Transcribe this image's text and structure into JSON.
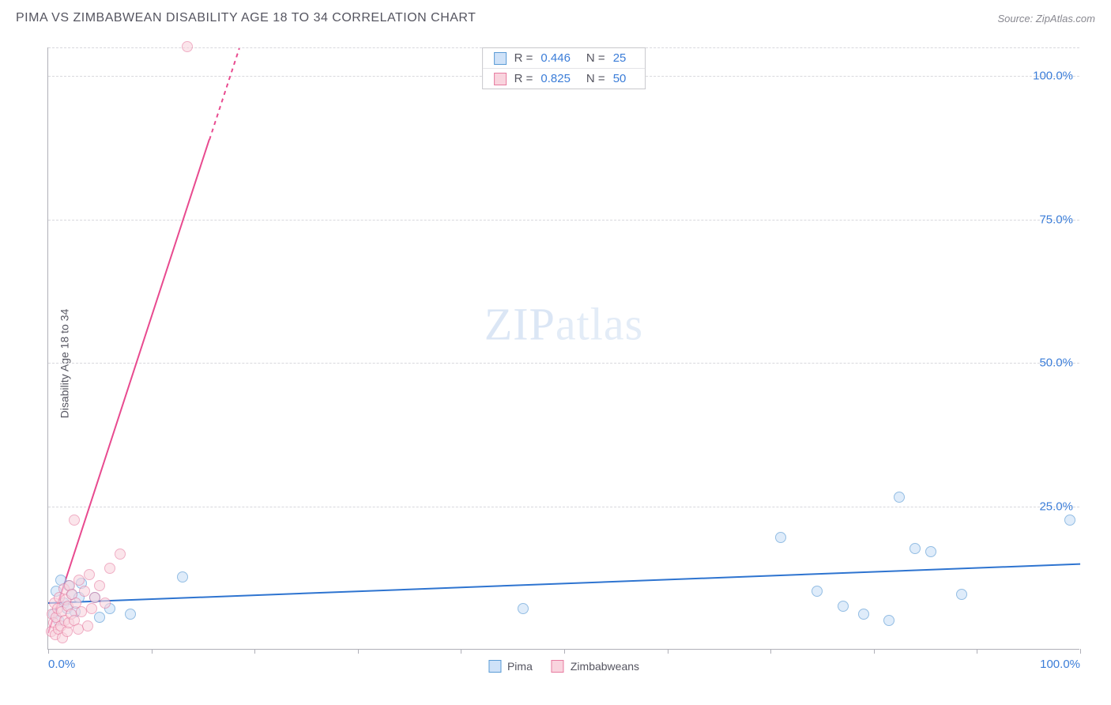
{
  "header": {
    "title": "PIMA VS ZIMBABWEAN DISABILITY AGE 18 TO 34 CORRELATION CHART",
    "source_prefix": "Source: ",
    "source_name": "ZipAtlas.com"
  },
  "chart": {
    "type": "scatter",
    "ylabel": "Disability Age 18 to 34",
    "watermark_bold": "ZIP",
    "watermark_thin": "atlas",
    "background_color": "#ffffff",
    "grid_color": "#d8d8dd",
    "axis_color": "#b0b0b8",
    "tick_label_color": "#3b7dd8",
    "xlim": [
      0,
      100
    ],
    "ylim": [
      0,
      105
    ],
    "xticks": [
      0,
      10,
      20,
      30,
      40,
      50,
      60,
      70,
      80,
      90,
      100
    ],
    "xtick_labels": {
      "0": "0.0%",
      "100": "100.0%"
    },
    "yticks": [
      25,
      50,
      75,
      100,
      105
    ],
    "ytick_labels": {
      "25": "25.0%",
      "50": "50.0%",
      "75": "75.0%",
      "100": "100.0%"
    },
    "marker_radius": 7,
    "marker_stroke_width": 1,
    "series": [
      {
        "key": "pima",
        "label": "Pima",
        "fill": "#cfe2f8",
        "stroke": "#5a9bd5",
        "fill_opacity": 0.65,
        "r_value": "0.446",
        "n_value": "25",
        "trend": {
          "x1": 0,
          "y1": 8.2,
          "x2": 100,
          "y2": 15.0,
          "color": "#2e74d0",
          "width": 2
        },
        "points": [
          [
            0.5,
            6
          ],
          [
            0.8,
            10
          ],
          [
            1.0,
            5
          ],
          [
            1.2,
            12
          ],
          [
            1.5,
            8
          ],
          [
            1.8,
            7
          ],
          [
            2.0,
            11
          ],
          [
            2.3,
            9.5
          ],
          [
            2.6,
            6.5
          ],
          [
            3.0,
            9
          ],
          [
            3.2,
            11.5
          ],
          [
            4.5,
            9
          ],
          [
            5.0,
            5.5
          ],
          [
            6.0,
            7
          ],
          [
            8.0,
            6
          ],
          [
            13.0,
            12.5
          ],
          [
            46.0,
            7
          ],
          [
            71.0,
            19.5
          ],
          [
            74.5,
            10
          ],
          [
            77.0,
            7.5
          ],
          [
            79.0,
            6
          ],
          [
            81.5,
            5
          ],
          [
            82.5,
            26.5
          ],
          [
            84.0,
            17.5
          ],
          [
            85.5,
            17
          ],
          [
            88.5,
            9.5
          ],
          [
            99.0,
            22.5
          ]
        ]
      },
      {
        "key": "zimb",
        "label": "Zimbabweans",
        "fill": "#f9d4de",
        "stroke": "#e77ba0",
        "fill_opacity": 0.6,
        "r_value": "0.825",
        "n_value": "50",
        "trend": {
          "x1": 0,
          "y1": 3,
          "x2": 18.5,
          "y2": 105,
          "color": "#e84a8f",
          "width": 2,
          "dash_after_x": 15.6
        },
        "points": [
          [
            0.3,
            3
          ],
          [
            0.4,
            6
          ],
          [
            0.5,
            4.5
          ],
          [
            0.6,
            8
          ],
          [
            0.7,
            2.5
          ],
          [
            0.8,
            5.5
          ],
          [
            0.9,
            7
          ],
          [
            1.0,
            3.5
          ],
          [
            1.1,
            9
          ],
          [
            1.2,
            4
          ],
          [
            1.3,
            6.5
          ],
          [
            1.4,
            2
          ],
          [
            1.5,
            10.5
          ],
          [
            1.6,
            5
          ],
          [
            1.7,
            8.5
          ],
          [
            1.8,
            3
          ],
          [
            1.9,
            7.5
          ],
          [
            2.0,
            4.5
          ],
          [
            2.1,
            11
          ],
          [
            2.2,
            6
          ],
          [
            2.3,
            9.5
          ],
          [
            2.5,
            5
          ],
          [
            2.7,
            8
          ],
          [
            2.9,
            3.5
          ],
          [
            3.0,
            12
          ],
          [
            3.2,
            6.5
          ],
          [
            3.5,
            10
          ],
          [
            3.8,
            4
          ],
          [
            4.0,
            13
          ],
          [
            4.2,
            7
          ],
          [
            4.5,
            9
          ],
          [
            5.0,
            11
          ],
          [
            5.5,
            8
          ],
          [
            6.0,
            14
          ],
          [
            2.5,
            22.5
          ],
          [
            7.0,
            16.5
          ],
          [
            13.5,
            105
          ]
        ]
      }
    ],
    "legend_top": {
      "r_label": "R =",
      "n_label": "N ="
    },
    "legend_bottom_order": [
      "pima",
      "zimb"
    ]
  }
}
